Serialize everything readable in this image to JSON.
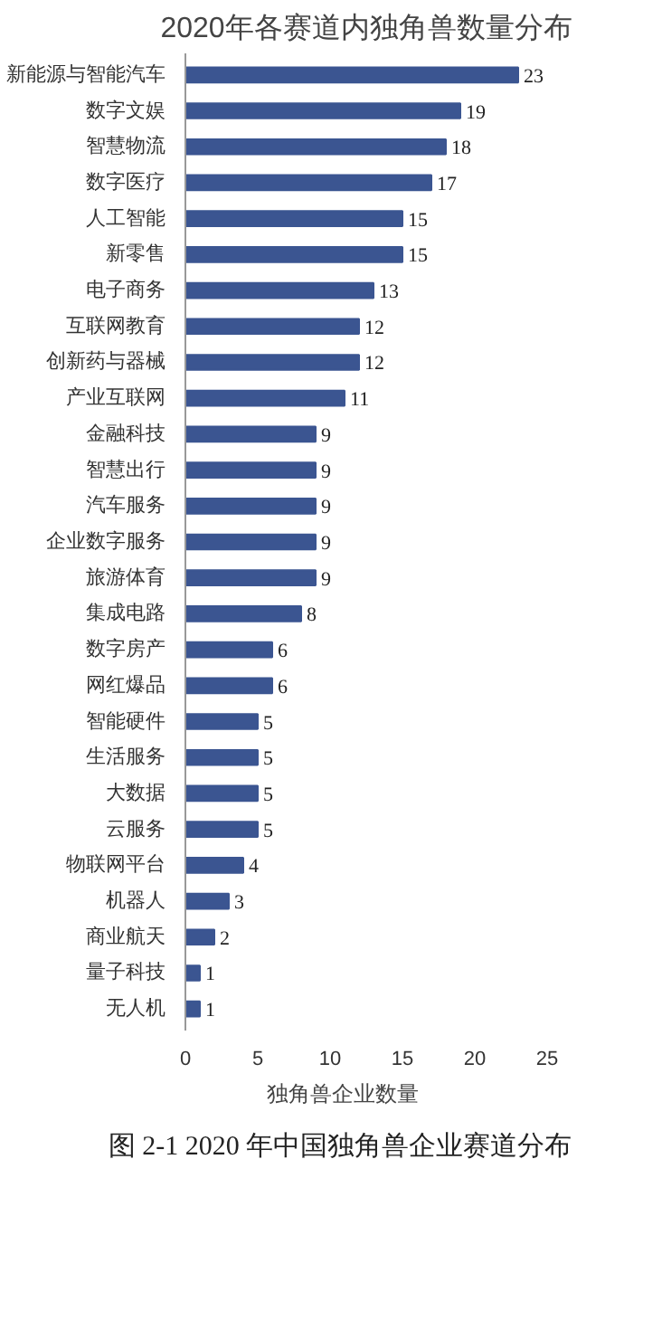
{
  "chart_data": {
    "type": "bar",
    "orientation": "horizontal",
    "title": "2020年各赛道内独角兽数量分布",
    "categories": [
      "新能源与智能汽车",
      "数字文娱",
      "智慧物流",
      "数字医疗",
      "人工智能",
      "新零售",
      "电子商务",
      "互联网教育",
      "创新药与器械",
      "产业互联网",
      "金融科技",
      "智慧出行",
      "汽车服务",
      "企业数字服务",
      "旅游体育",
      "集成电路",
      "数字房产",
      "网红爆品",
      "智能硬件",
      "生活服务",
      "大数据",
      "云服务",
      "物联网平台",
      "机器人",
      "商业航天",
      "量子科技",
      "无人机"
    ],
    "series": [
      {
        "name": "独角兽企业数量",
        "color": "#3b5591",
        "values": [
          23,
          19,
          18,
          17,
          15,
          15,
          13,
          12,
          12,
          11,
          9,
          9,
          9,
          9,
          9,
          8,
          6,
          6,
          5,
          5,
          5,
          5,
          4,
          3,
          2,
          1,
          1
        ]
      }
    ],
    "xlim": [
      0,
      25
    ],
    "xticks": [
      0,
      5,
      10,
      15,
      20,
      25
    ],
    "data_labels": true,
    "grid": false,
    "legend": "bottom",
    "annotations": [
      "图 2-1 2020 年中国独角兽企业赛道分布"
    ]
  }
}
